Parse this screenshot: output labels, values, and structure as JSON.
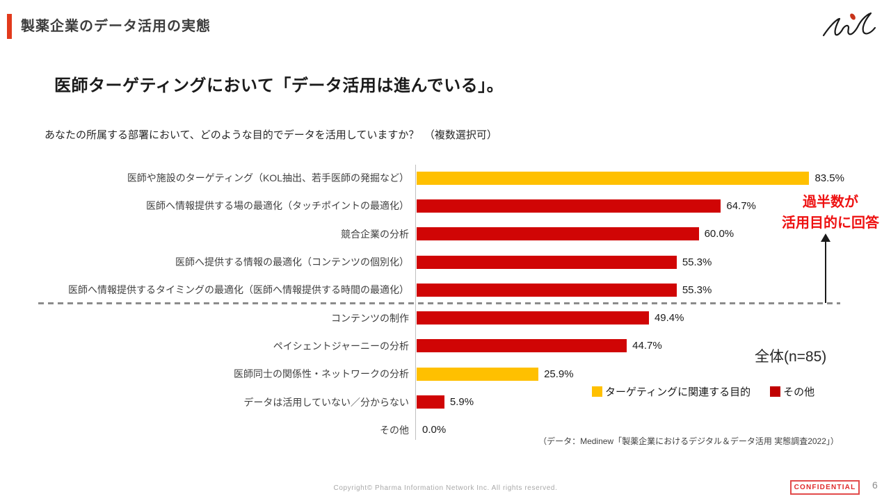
{
  "header": {
    "title": "製薬企業のデータ活用の実態",
    "accent_color": "#E23A1C",
    "logo_icon": "pin-signature-logo"
  },
  "main": {
    "title": "医師ターゲティングにおいて「データ活用は進んでいる」。",
    "question": "あなたの所属する部署において、どのような目的でデータを活用していますか？　（複数選択可）"
  },
  "chart_data": {
    "type": "bar",
    "orientation": "horizontal",
    "title": "",
    "xlabel": "",
    "ylabel": "",
    "xlim": [
      0,
      100
    ],
    "unit": "%",
    "grid": false,
    "categories": [
      "医師や施設のターゲティング（KOL抽出、若手医師の発掘など）",
      "医師へ情報提供する場の最適化（タッチポイントの最適化）",
      "競合企業の分析",
      "医師へ提供する情報の最適化（コンテンツの個別化）",
      "医師へ情報提供するタイミングの最適化（医師へ情報提供する時間の最適化）",
      "コンテンツの制作",
      "ペイシェントジャーニーの分析",
      "医師同士の関係性・ネットワークの分析",
      "データは活用していない／分からない",
      "その他"
    ],
    "values": [
      83.5,
      64.7,
      60.0,
      55.3,
      55.3,
      49.4,
      44.7,
      25.9,
      5.9,
      0.0
    ],
    "value_labels": [
      "83.5%",
      "64.7%",
      "60.0%",
      "55.3%",
      "55.3%",
      "49.4%",
      "44.7%",
      "25.9%",
      "5.9%",
      "0.0%"
    ],
    "bar_series": [
      "targeting",
      "other",
      "other",
      "other",
      "other",
      "other",
      "other",
      "targeting",
      "other",
      "other"
    ],
    "series_colors": {
      "targeting": "#FFC000",
      "other": "#D00505"
    },
    "divider_after_index": 4,
    "legend": [
      {
        "label": "ターゲティングに関連する目的",
        "color": "#FFC000"
      },
      {
        "label": "その他",
        "color": "#C00000"
      }
    ],
    "legend_position": "bottom-right",
    "annotation": {
      "lines": [
        "過半数が",
        "活用目的に回答"
      ],
      "color": "#EE1111"
    },
    "sample_label": "全体(n=85)",
    "source": "（データ：Medinew「製薬企業におけるデジタル＆データ活用 実態調査2022」）"
  },
  "footer": {
    "copyright": "Copyright© Pharma Information Network Inc. All rights reserved.",
    "confidential_label": "CONFIDENTIAL",
    "page_number": "6"
  }
}
